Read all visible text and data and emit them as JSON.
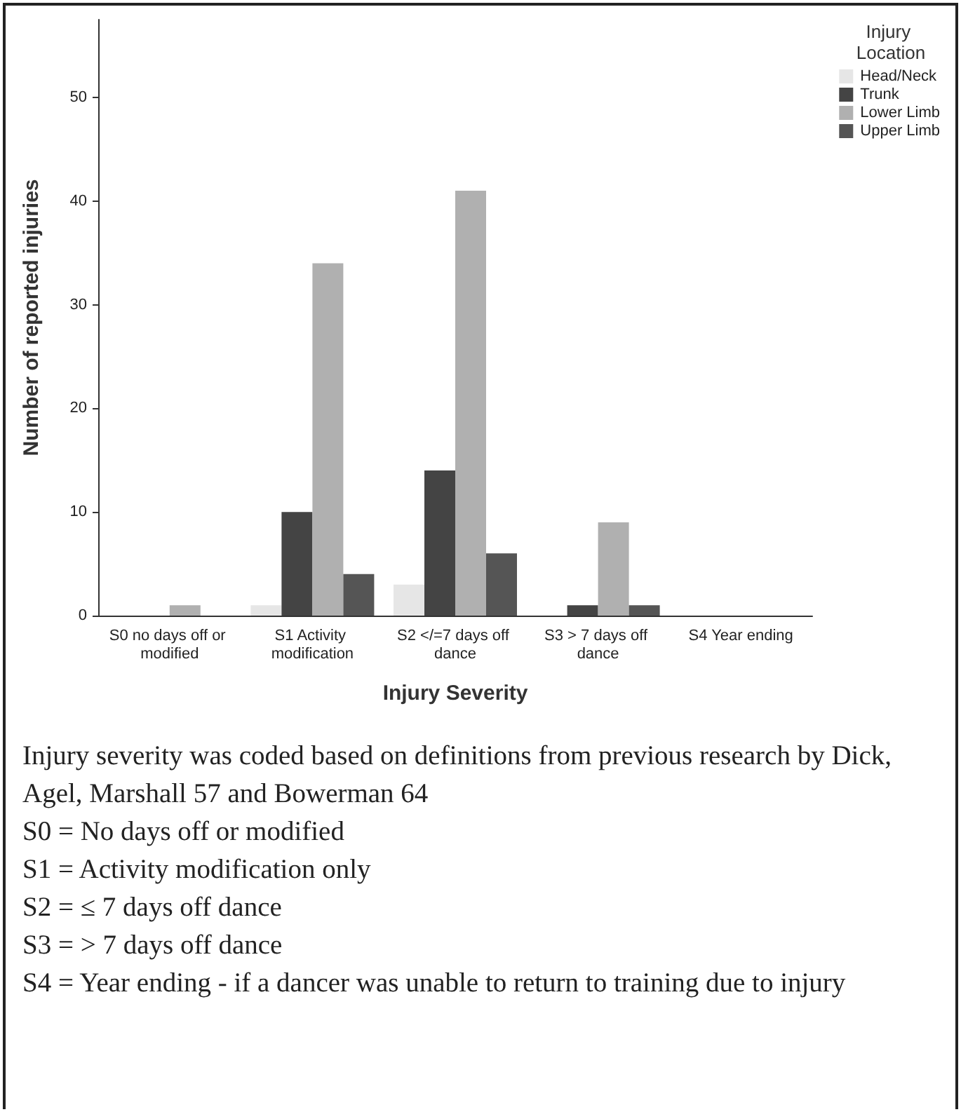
{
  "chart_data": {
    "type": "bar",
    "xlabel": "Injury Severity",
    "ylabel": "Number of reported injuries",
    "legend_title": "Injury Location",
    "categories": [
      "S0 no days off or modified",
      "S1 Activity modification",
      "S2 </=7 days off dance",
      "S3 > 7 days off dance",
      "S4 Year ending"
    ],
    "series": [
      {
        "name": "Head/Neck",
        "color": "#e6e6e6",
        "values": [
          0,
          1,
          3,
          0,
          0
        ]
      },
      {
        "name": "Trunk",
        "color": "#444444",
        "values": [
          0,
          10,
          14,
          1,
          0
        ]
      },
      {
        "name": "Lower Limb",
        "color": "#b0b0b0",
        "values": [
          1,
          34,
          41,
          9,
          0
        ]
      },
      {
        "name": "Upper Limb",
        "color": "#555555",
        "values": [
          0,
          4,
          6,
          1,
          0
        ]
      }
    ],
    "ylim": [
      0,
      57.5
    ],
    "yticks": [
      0,
      10,
      20,
      30,
      40,
      50
    ],
    "grid": false,
    "legend": "top right",
    "annotations": [
      "Injury severity was coded based on definitions from previous research by Dick, Agel, Marshall 57 and Bowerman 64",
      "S0 = No days off or modified",
      "S1 = Activity modification only",
      "S2 = ≤ 7 days off dance",
      "S3 = > 7 days off dance",
      "S4 = Year ending - if a dancer was unable to return to training due to injury"
    ]
  }
}
